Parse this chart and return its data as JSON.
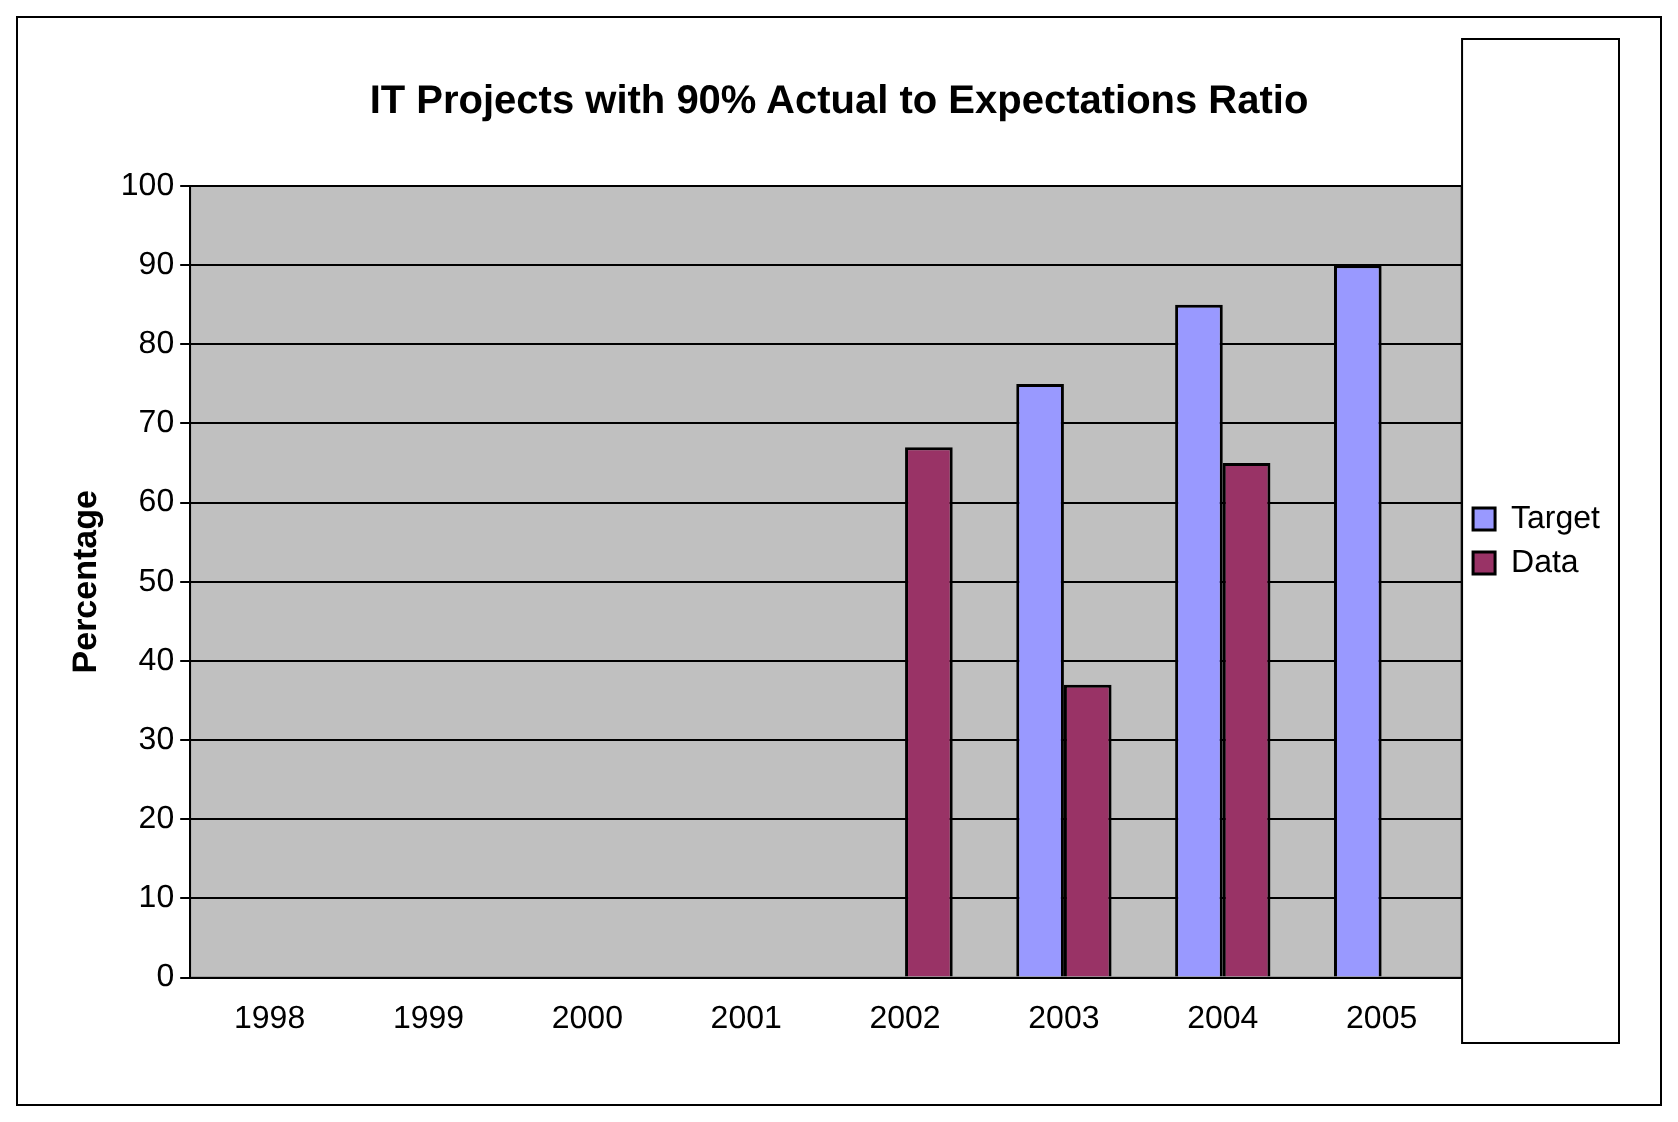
{
  "chart_data": {
    "type": "bar",
    "title": "IT Projects with 90% Actual to Expectations Ratio",
    "ylabel": "Percentage",
    "categories": [
      "1998",
      "1999",
      "2000",
      "2001",
      "2002",
      "2003",
      "2004",
      "2005"
    ],
    "series": [
      {
        "name": "Target",
        "color": "#9999ff",
        "values": [
          null,
          null,
          null,
          null,
          null,
          75,
          85,
          90
        ]
      },
      {
        "name": "Data",
        "color": "#993366",
        "values": [
          null,
          null,
          null,
          null,
          67,
          37,
          65,
          null
        ]
      }
    ],
    "ylim": [
      0,
      100
    ],
    "yticks": [
      0,
      10,
      20,
      30,
      40,
      50,
      60,
      70,
      80,
      90,
      100
    ],
    "grid": "y",
    "legend": "right"
  }
}
